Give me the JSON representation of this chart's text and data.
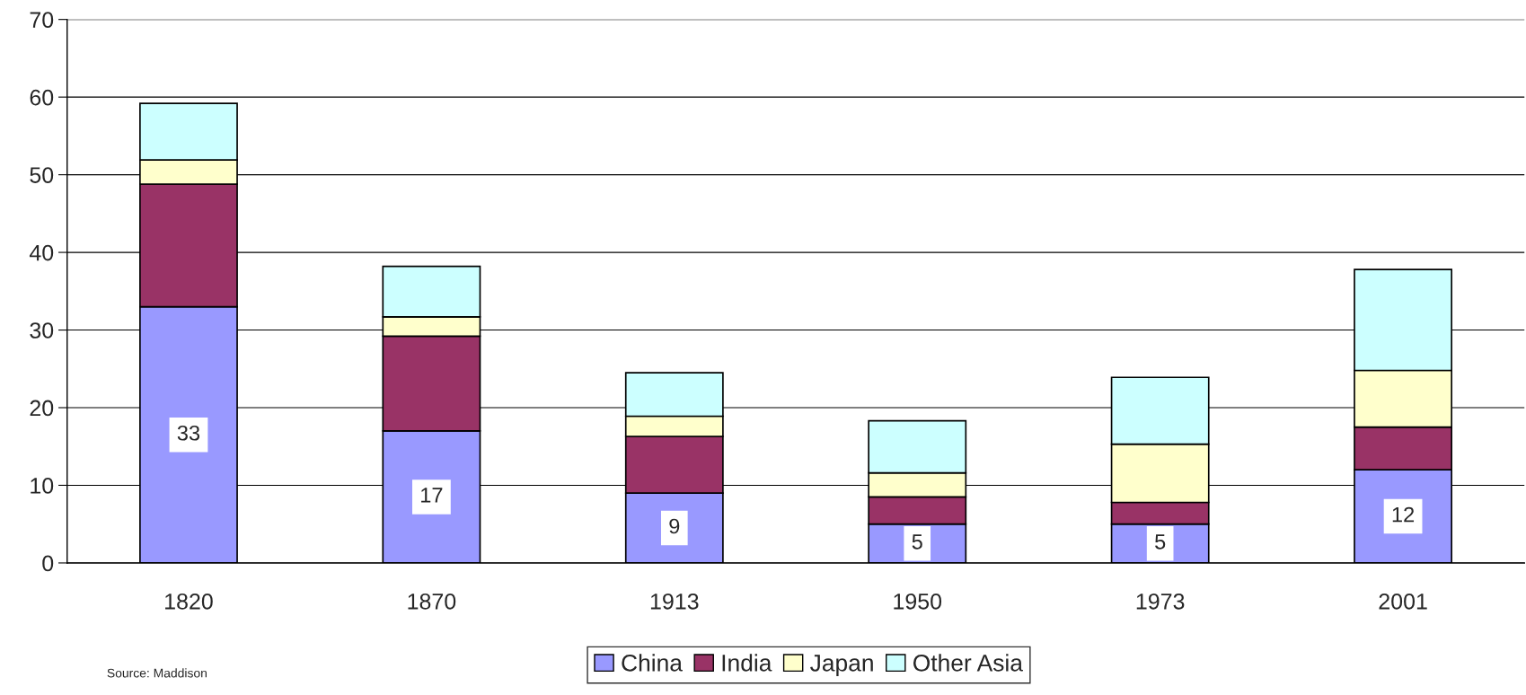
{
  "chart_data": {
    "type": "bar",
    "stacked": true,
    "categories": [
      "1820",
      "1870",
      "1913",
      "1950",
      "1973",
      "2001"
    ],
    "series": [
      {
        "name": "China",
        "color": "#9999ff",
        "values": [
          33,
          17,
          9,
          5,
          5,
          12
        ],
        "value_labels": [
          "33",
          "17",
          "9",
          "5",
          "5",
          "12"
        ]
      },
      {
        "name": "India",
        "color": "#993366",
        "values": [
          15.8,
          12.2,
          7.3,
          3.5,
          2.8,
          5.5
        ]
      },
      {
        "name": "Japan",
        "color": "#ffffcc",
        "values": [
          3.1,
          2.5,
          2.6,
          3.1,
          7.5,
          7.3
        ]
      },
      {
        "name": "Other Asia",
        "color": "#ccffff",
        "values": [
          7.3,
          6.5,
          5.6,
          6.7,
          8.6,
          13.0
        ]
      }
    ],
    "ylim": [
      0,
      70
    ],
    "yticks": [
      0,
      10,
      20,
      30,
      40,
      50,
      60,
      70
    ],
    "grid": "y",
    "legend": "bottom",
    "annotations": [
      "Source: Maddison"
    ]
  }
}
